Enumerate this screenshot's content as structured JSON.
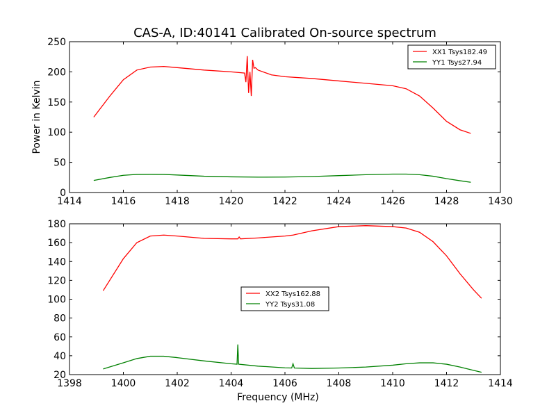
{
  "title": "CAS-A, ID:40141 Calibrated On-source spectrum",
  "chart_data": [
    {
      "type": "line",
      "title": "CAS-A, ID:40141 Calibrated On-source spectrum",
      "xlabel": "",
      "ylabel": "Power in Kelvin",
      "xlim": [
        1414,
        1430
      ],
      "ylim": [
        0,
        250
      ],
      "xticks": [
        1414,
        1416,
        1418,
        1420,
        1422,
        1424,
        1426,
        1428,
        1430
      ],
      "yticks": [
        0,
        50,
        100,
        150,
        200,
        250
      ],
      "legend_position": "top-right",
      "grid": false,
      "series": [
        {
          "name": "XX1 Tsys182.49",
          "color": "#ff0000",
          "x": [
            1414.9,
            1415.5,
            1416.0,
            1416.5,
            1417.0,
            1417.5,
            1418.0,
            1419.0,
            1420.0,
            1420.5,
            1420.55,
            1420.6,
            1420.65,
            1420.7,
            1420.75,
            1420.8,
            1420.85,
            1420.9,
            1421.0,
            1421.5,
            1422.0,
            1423.0,
            1424.0,
            1425.0,
            1426.0,
            1426.5,
            1427.0,
            1427.5,
            1428.0,
            1428.5,
            1428.9
          ],
          "y": [
            125,
            160,
            187,
            203,
            208,
            209,
            207,
            203,
            200,
            198,
            183,
            226,
            165,
            200,
            160,
            220,
            206,
            207,
            203,
            195,
            192,
            189,
            185,
            181,
            177,
            172,
            160,
            140,
            118,
            104,
            98
          ]
        },
        {
          "name": "YY1 Tsys27.94",
          "color": "#008000",
          "x": [
            1414.9,
            1415.5,
            1416.0,
            1416.5,
            1417.0,
            1417.5,
            1418.0,
            1419.0,
            1420.0,
            1421.0,
            1422.0,
            1423.0,
            1424.0,
            1425.0,
            1426.0,
            1426.5,
            1427.0,
            1427.5,
            1428.0,
            1428.5,
            1428.9
          ],
          "y": [
            20,
            25,
            28.5,
            30,
            30.2,
            30,
            29,
            27,
            26,
            25.5,
            25.6,
            26.5,
            28,
            29.5,
            30.5,
            30.5,
            29.5,
            27,
            23,
            19.5,
            17
          ]
        }
      ]
    },
    {
      "type": "line",
      "title": "",
      "xlabel": "Frequency (MHz)",
      "ylabel": "",
      "xlim": [
        1398,
        1414
      ],
      "ylim": [
        20,
        180
      ],
      "xticks": [
        1398,
        1400,
        1402,
        1404,
        1406,
        1408,
        1410,
        1412,
        1414
      ],
      "yticks": [
        20,
        40,
        60,
        80,
        100,
        120,
        140,
        160,
        180
      ],
      "legend_position": "center",
      "grid": false,
      "series": [
        {
          "name": "XX2 Tsys162.88",
          "color": "#ff0000",
          "x": [
            1399.25,
            1400.0,
            1400.5,
            1401.0,
            1401.5,
            1402.0,
            1403.0,
            1404.0,
            1404.25,
            1404.3,
            1404.35,
            1405.0,
            1406.0,
            1406.3,
            1407.0,
            1408.0,
            1409.0,
            1410.0,
            1410.5,
            1411.0,
            1411.5,
            1412.0,
            1412.5,
            1413.0,
            1413.3
          ],
          "y": [
            109,
            143,
            160,
            167,
            168,
            167,
            164.5,
            164,
            164,
            166,
            164,
            165,
            167,
            168,
            172.5,
            177,
            178,
            177,
            175.5,
            171,
            161,
            146,
            127,
            110,
            101
          ]
        },
        {
          "name": "YY2 Tsys31.08",
          "color": "#008000",
          "x": [
            1399.25,
            1400.0,
            1400.5,
            1401.0,
            1401.5,
            1402.0,
            1403.0,
            1404.0,
            1404.22,
            1404.25,
            1404.28,
            1405.0,
            1406.0,
            1406.25,
            1406.3,
            1406.35,
            1407.0,
            1408.0,
            1409.0,
            1410.0,
            1410.5,
            1411.0,
            1411.5,
            1412.0,
            1412.5,
            1413.0,
            1413.3
          ],
          "y": [
            26,
            32.5,
            37,
            39.5,
            39.5,
            38,
            34.5,
            31.5,
            31,
            52,
            31,
            29,
            27.2,
            27,
            31.5,
            27,
            26.5,
            27,
            28,
            30,
            31.5,
            32.5,
            32.5,
            31,
            28,
            24.5,
            22.5
          ]
        }
      ]
    }
  ]
}
